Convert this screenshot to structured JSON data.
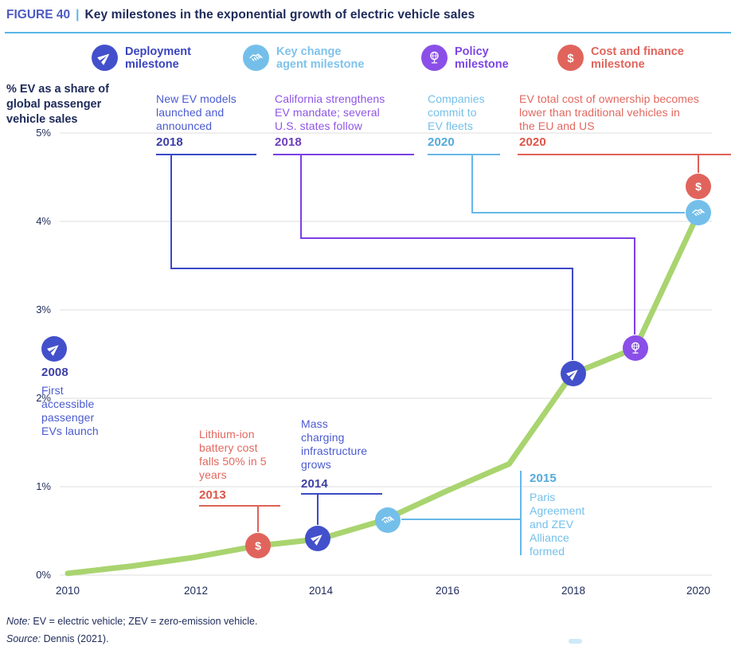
{
  "header": {
    "figure_label": "FIGURE 40",
    "separator": "|",
    "title": "Key milestones in the exponential growth of electric vehicle sales"
  },
  "legend": [
    {
      "line1": "Deployment",
      "line2": "milestone",
      "icon": "paper-plane-icon",
      "color": "#4350cb",
      "text_color": "#3a44bf"
    },
    {
      "line1": "Key change",
      "line2": "agent milestone",
      "icon": "handshake-icon",
      "color": "#74bfea",
      "text_color": "#7fc3ec"
    },
    {
      "line1": "Policy",
      "line2": "milestone",
      "icon": "globe-icon",
      "color": "#8a4fe8",
      "text_color": "#7d46e3"
    },
    {
      "line1": "Cost and finance",
      "line2": "milestone",
      "icon": "dollar-icon",
      "color": "#e0645c",
      "text_color": "#e0645c"
    }
  ],
  "axis": {
    "y_title_lines": [
      "% EV as a share of",
      "global passenger",
      "vehicle sales"
    ],
    "y_ticks": [
      "5%",
      "4%",
      "3%",
      "2%",
      "1%",
      "0%"
    ],
    "x_ticks": [
      "2010",
      "2012",
      "2014",
      "2016",
      "2018",
      "2020"
    ]
  },
  "chart_data": {
    "type": "line",
    "title": "Key milestones in the exponential growth of electric vehicle sales",
    "x": [
      2010,
      2011,
      2012,
      2013,
      2014,
      2015,
      2016,
      2017,
      2018,
      2019,
      2020
    ],
    "values": [
      0.02,
      0.1,
      0.2,
      0.33,
      0.41,
      0.62,
      0.95,
      1.26,
      2.28,
      2.57,
      4.1
    ],
    "xlabel": "",
    "ylabel": "% EV as a share of global passenger vehicle sales",
    "ylim": [
      0,
      5
    ],
    "xlim": [
      2010,
      2020
    ],
    "x_tick_labels": [
      2010,
      2012,
      2014,
      2016,
      2018,
      2020
    ],
    "grid": true,
    "line_color": "#a9d46f",
    "legend_position": "top"
  },
  "milestones": [
    {
      "year": "2008",
      "type": "deployment",
      "lines": [
        "First",
        "accessible",
        "passenger",
        "EVs launch"
      ]
    },
    {
      "year": "2013",
      "type": "cost-and-finance",
      "lines": [
        "Lithium-ion",
        "battery cost",
        "falls 50% in 5",
        "years"
      ]
    },
    {
      "year": "2014",
      "type": "deployment",
      "lines": [
        "Mass",
        "charging",
        "infrastructure",
        "grows"
      ]
    },
    {
      "year": "2015",
      "type": "key-change-agent",
      "lines": [
        "Paris",
        "Agreement",
        "and ZEV",
        "Alliance",
        "formed"
      ]
    },
    {
      "year": "2018",
      "type": "deployment",
      "lines": [
        "New EV models",
        "launched and",
        "announced"
      ]
    },
    {
      "year": "2018",
      "type": "policy",
      "lines": [
        "California strengthens",
        "EV mandate; several",
        "U.S. states follow"
      ]
    },
    {
      "year": "2020",
      "type": "key-change-agent",
      "lines": [
        "Companies",
        "commit to",
        "EV fleets"
      ]
    },
    {
      "year": "2020",
      "type": "cost-and-finance",
      "lines": [
        "EV total cost of ownership becomes",
        "lower than traditional vehicles in",
        "the EU and US"
      ]
    }
  ],
  "footer": {
    "note_label": "Note:",
    "note_text": " EV = electric vehicle; ZEV = zero-emission vehicle.",
    "source_label": "Source:",
    "source_text": " Dennis (2021)."
  },
  "palette": {
    "deployment": "#4350cb",
    "key_change_agent": "#74bfea",
    "policy": "#8a4fe8",
    "cost_and_finance": "#e0645c",
    "line_green": "#a9d46f",
    "navy_text": "#1e2a5a",
    "figure_label_blue": "#4d5bc3",
    "divider_blue": "#56b7e6",
    "gridline_gray": "#dcdcdc"
  }
}
